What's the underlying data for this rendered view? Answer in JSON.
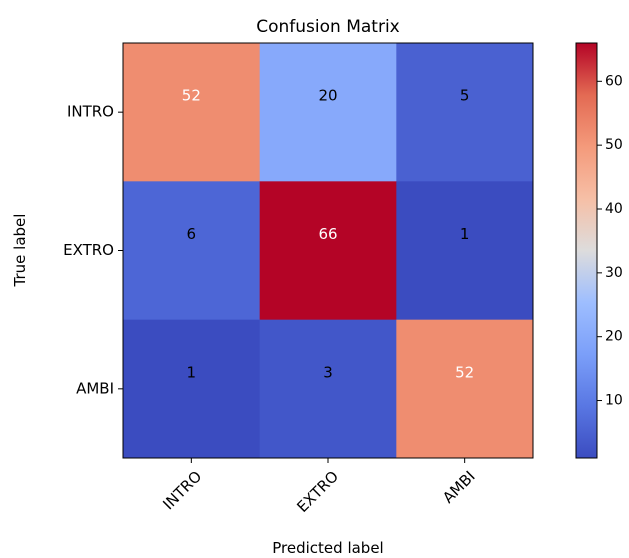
{
  "chart_data": {
    "type": "heatmap",
    "title": "Confusion Matrix",
    "xlabel": "Predicted label",
    "ylabel": "True label",
    "x_categories": [
      "INTRO",
      "EXTRO",
      "AMBI"
    ],
    "y_categories": [
      "INTRO",
      "EXTRO",
      "AMBI"
    ],
    "values": [
      [
        52,
        20,
        5
      ],
      [
        6,
        66,
        1
      ],
      [
        1,
        3,
        52
      ]
    ],
    "colormap": "coolwarm",
    "value_range": [
      1,
      66
    ],
    "colorbar": {
      "ticks": [
        10,
        20,
        30,
        40,
        50,
        60
      ],
      "tick_labels": [
        "10",
        "20",
        "30",
        "40",
        "50",
        "60"
      ]
    },
    "cell_text_colors": {
      "light": "#ffffff",
      "dark": "#000000"
    },
    "frame_color": "#000000"
  }
}
